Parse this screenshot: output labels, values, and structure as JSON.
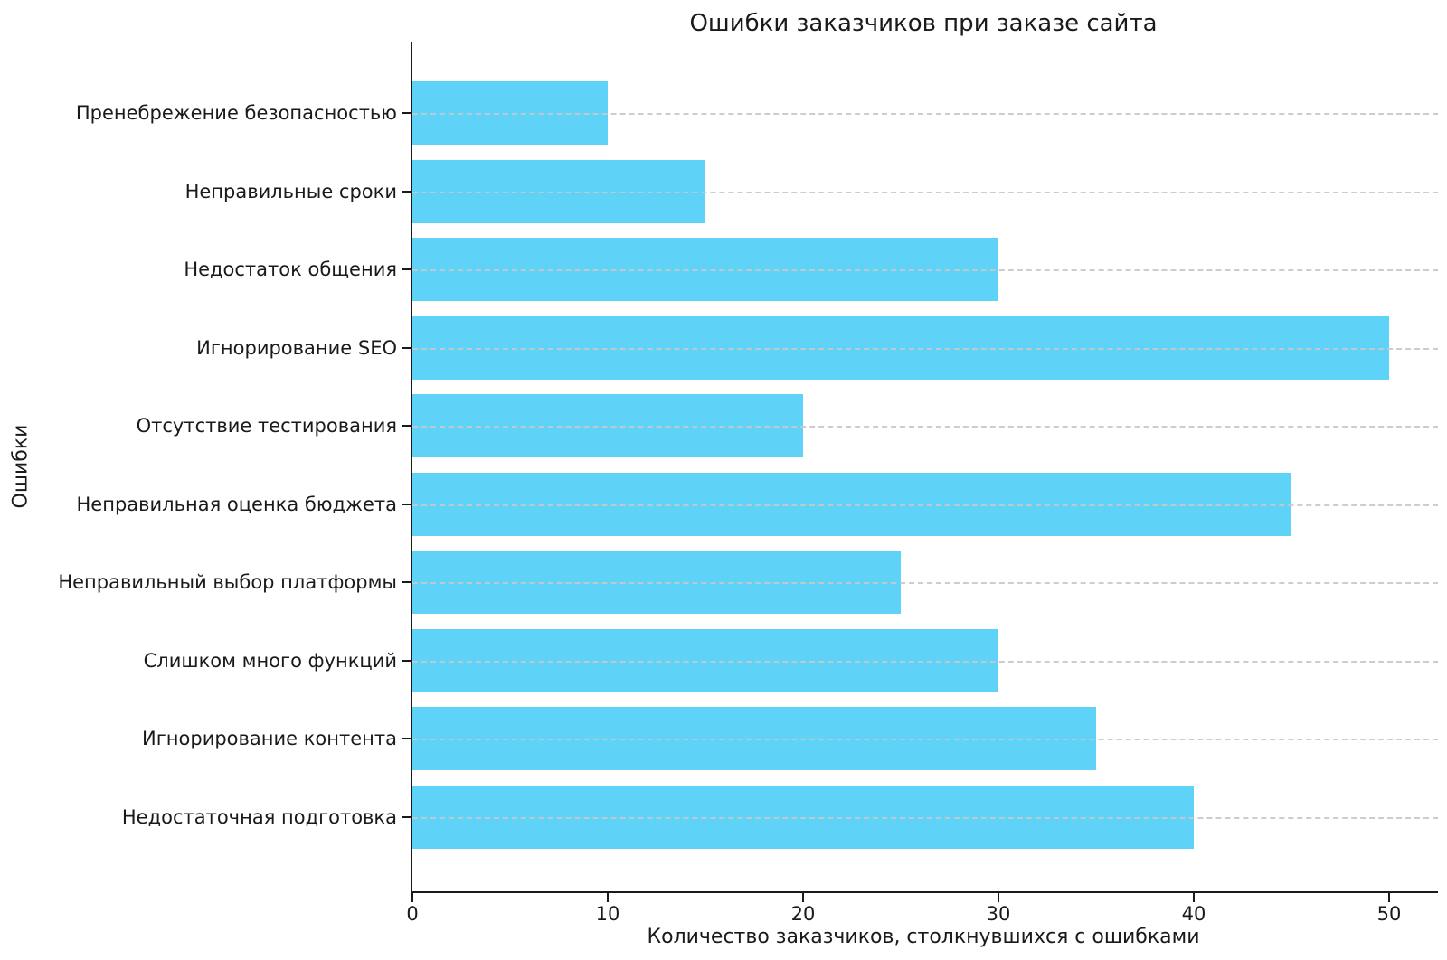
{
  "chart_data": {
    "type": "bar",
    "orientation": "horizontal",
    "title": "Ошибки заказчиков при заказе сайта",
    "xlabel": "Количество заказчиков, столкнувшихся с ошибками",
    "ylabel": "Ошибки",
    "categories": [
      "Пренебрежение безопасностью",
      "Неправильные сроки",
      "Недостаток общения",
      "Игнорирование SEO",
      "Отсутствие тестирования",
      "Неправильная оценка бюджета",
      "Неправильный выбор платформы",
      "Слишком много функций",
      "Игнорирование контента",
      "Недостаточная подготовка"
    ],
    "values": [
      10,
      15,
      30,
      50,
      20,
      45,
      25,
      30,
      35,
      40
    ],
    "xticks": [
      0,
      10,
      20,
      30,
      40,
      50
    ],
    "xlim": [
      0,
      52.5
    ],
    "grid": "horizontal-dashed",
    "legend": "none",
    "colors": {
      "bar": "#5ED3F7",
      "grid": "#C8C8C8",
      "axis": "#1A1A1A",
      "text": "#1A1A1A",
      "background": "#FFFFFF"
    }
  }
}
